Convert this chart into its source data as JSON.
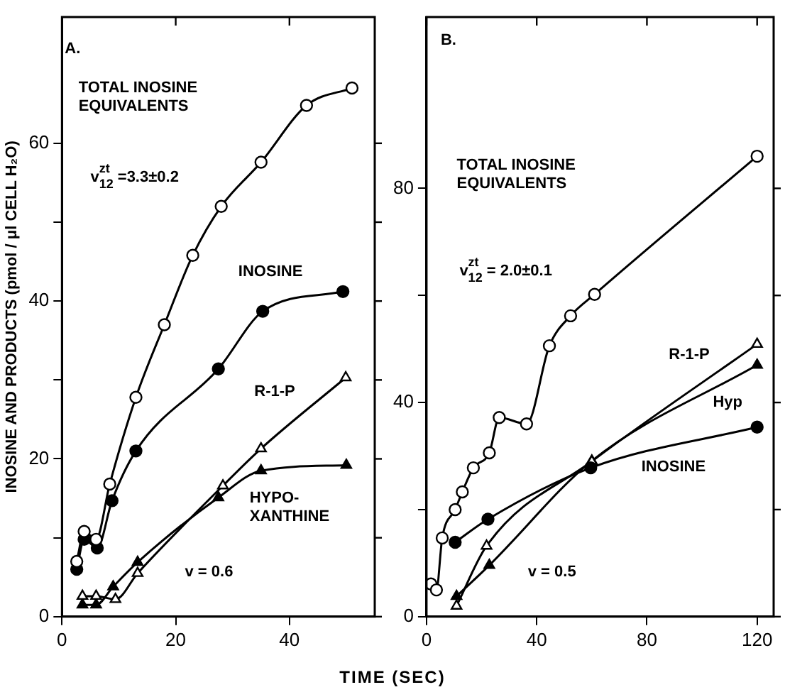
{
  "chart_data": [
    {
      "type": "line",
      "ylabel": "INOSINE AND PRODUCTS (pmol / μl CELL H₂O)",
      "xlabel": "TIME (SEC)",
      "xlim": [
        0,
        55
      ],
      "ylim": [
        0,
        76
      ],
      "xticks": [
        0,
        20,
        40
      ],
      "yticks": [
        0,
        {
          "value": 10,
          "label": null
        },
        20,
        {
          "value": 30,
          "label": null
        },
        40,
        {
          "value": 50,
          "label": null
        },
        60
      ],
      "grid": false,
      "legend": false,
      "line_style": "solid",
      "series": [
        {
          "color": "#000000",
          "marker": "circle",
          "x": [
            2.6,
            3.9,
            6,
            8.4,
            13,
            18,
            23,
            28,
            35,
            43,
            51
          ],
          "values": [
            7,
            10.8,
            9.8,
            16.8,
            27.8,
            37,
            45.8,
            52,
            57.6,
            64.8,
            67
          ]
        },
        {
          "name": "INOSINE",
          "color": "#000000",
          "marker": "circle",
          "x": [
            2.6,
            3.9,
            6.2,
            8.8,
            13,
            27.5,
            35.3,
            49.4
          ],
          "values": [
            6,
            9.8,
            8.7,
            14.7,
            21,
            31.4,
            38.7,
            41.2
          ]
        },
        {
          "name": "R-1-P",
          "color": "#000000",
          "marker": "triangle",
          "x": [
            3.6,
            6,
            9.4,
            13.3,
            28.3,
            35,
            49.9
          ],
          "values": [
            2.6,
            2.6,
            2.2,
            5.5,
            16.6,
            21.3,
            30.3
          ]
        },
        {
          "name": "HYPO-XANTHINE",
          "color": "#000000",
          "marker": "triangle",
          "x": [
            3.6,
            6,
            9,
            13.3,
            27.5,
            35,
            50
          ],
          "values": [
            1.5,
            1.5,
            3.8,
            6.9,
            15.1,
            18.5,
            19.2
          ]
        }
      ],
      "annotations": [
        "A.",
        "v$^{zt}$$_{12}$ =3.3±0.2",
        "v = 0.6",
        "TOTAL INOSINE\nEQUIVALENTS"
      ]
    },
    {
      "type": "line",
      "xlim": [
        0,
        126
      ],
      "ylim": [
        0,
        112
      ],
      "xticks": [
        0,
        40,
        80,
        120
      ],
      "yticks": [
        0,
        {
          "value": 20,
          "label": null
        },
        40,
        {
          "value": 60,
          "label": null
        },
        80
      ],
      "grid": false,
      "line_style": "solid",
      "series": [
        {
          "color": "#000000",
          "marker": "circle",
          "x": [
            1.6,
            3.6,
            5.7,
            10.4,
            13,
            17,
            22.8,
            26.4,
            36.3,
            44.6,
            52.3,
            61,
            120
          ],
          "values": [
            6.1,
            5,
            14.7,
            20,
            23.3,
            27.8,
            30.6,
            37.2,
            36,
            50.6,
            56.2,
            60.2,
            86
          ]
        },
        {
          "name": "INOSINE",
          "color": "#000000",
          "marker": "circle",
          "x": [
            10.4,
            22.3,
            59.6,
            120
          ],
          "values": [
            13.9,
            18.2,
            27.8,
            35.4
          ]
        },
        {
          "name": "R-1-P",
          "color": "#000000",
          "marker": "triangle",
          "x": [
            10.9,
            21.8,
            60,
            120
          ],
          "values": [
            2,
            13.2,
            29,
            50.9
          ]
        },
        {
          "name": "Hyp",
          "color": "#000000",
          "marker": "triangle",
          "x": [
            10.9,
            22.8,
            60,
            120
          ],
          "values": [
            3.8,
            9.6,
            29.1,
            47
          ]
        }
      ],
      "annotations": [
        "B.",
        "v$^{zt}$$_{12}$ = 2.0±0.1",
        "v = 0.5",
        "TOTAL INOSINE\nEQUIVALENTS"
      ]
    }
  ]
}
